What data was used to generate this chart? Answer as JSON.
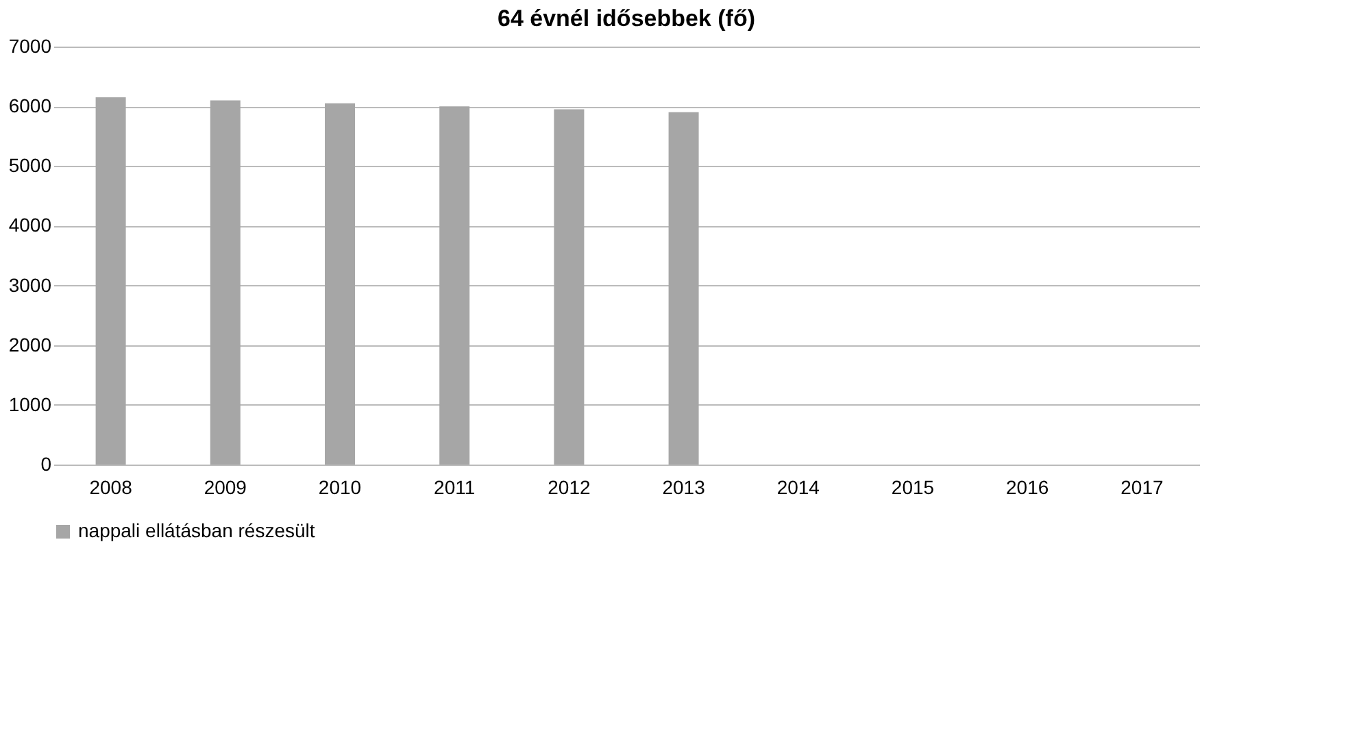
{
  "chart_data": {
    "type": "bar",
    "title": "64 évnél idősebbek (fő)",
    "categories": [
      "2008",
      "2009",
      "2010",
      "2011",
      "2012",
      "2013",
      "2014",
      "2015",
      "2016",
      "2017"
    ],
    "series": [
      {
        "name": "nappali ellátásban részesült",
        "color": "#a6a6a6",
        "values": [
          6150,
          6100,
          6050,
          6000,
          5950,
          5900,
          null,
          null,
          null,
          null
        ]
      }
    ],
    "ylim": [
      0,
      7000
    ],
    "yticks": [
      0,
      1000,
      2000,
      3000,
      4000,
      5000,
      6000,
      7000
    ],
    "grid": "y",
    "legend": "bottom"
  }
}
